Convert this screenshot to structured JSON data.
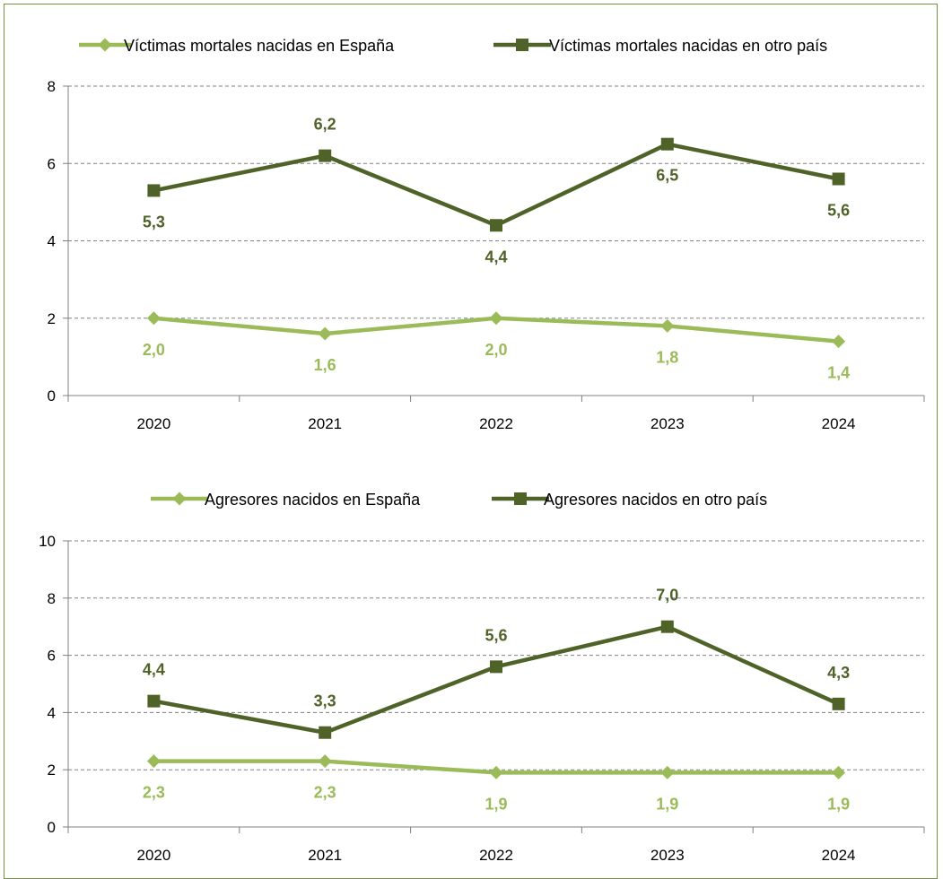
{
  "colors": {
    "light_green": "#9bbb59",
    "dark_green": "#4f6228",
    "grid": "#808080",
    "frame": "#76923c"
  },
  "chart_data": [
    {
      "type": "line",
      "categories": [
        "2020",
        "2021",
        "2022",
        "2023",
        "2024"
      ],
      "ylim": [
        0,
        8
      ],
      "yticks": [
        0,
        2,
        4,
        6,
        8
      ],
      "grid": true,
      "legend_position": "top",
      "series": [
        {
          "name": "Víctimas mortales nacidas en España",
          "values": [
            2.0,
            1.6,
            2.0,
            1.8,
            1.4
          ],
          "labels": [
            "2,0",
            "1,6",
            "2,0",
            "1,8",
            "1,4"
          ],
          "marker": "diamond",
          "color": "#9bbb59"
        },
        {
          "name": "Víctimas mortales nacidas en otro país",
          "values": [
            5.3,
            6.2,
            4.4,
            6.5,
            5.6
          ],
          "labels": [
            "5,3",
            "6,2",
            "4,4",
            "6,5",
            "5,6"
          ],
          "marker": "square",
          "color": "#4f6228"
        }
      ]
    },
    {
      "type": "line",
      "categories": [
        "2020",
        "2021",
        "2022",
        "2023",
        "2024"
      ],
      "ylim": [
        0,
        10
      ],
      "yticks": [
        0,
        2,
        4,
        6,
        8,
        10
      ],
      "grid": true,
      "legend_position": "top",
      "series": [
        {
          "name": "Agresores nacidos en España",
          "values": [
            2.3,
            2.3,
            1.9,
            1.9,
            1.9
          ],
          "labels": [
            "2,3",
            "2,3",
            "1,9",
            "1,9",
            "1,9"
          ],
          "marker": "diamond",
          "color": "#9bbb59"
        },
        {
          "name": "Agresores nacidos en otro país",
          "values": [
            4.4,
            3.3,
            5.6,
            7.0,
            4.3
          ],
          "labels": [
            "4,4",
            "3,3",
            "5,6",
            "7,0",
            "4,3"
          ],
          "marker": "square",
          "color": "#4f6228"
        }
      ]
    }
  ]
}
